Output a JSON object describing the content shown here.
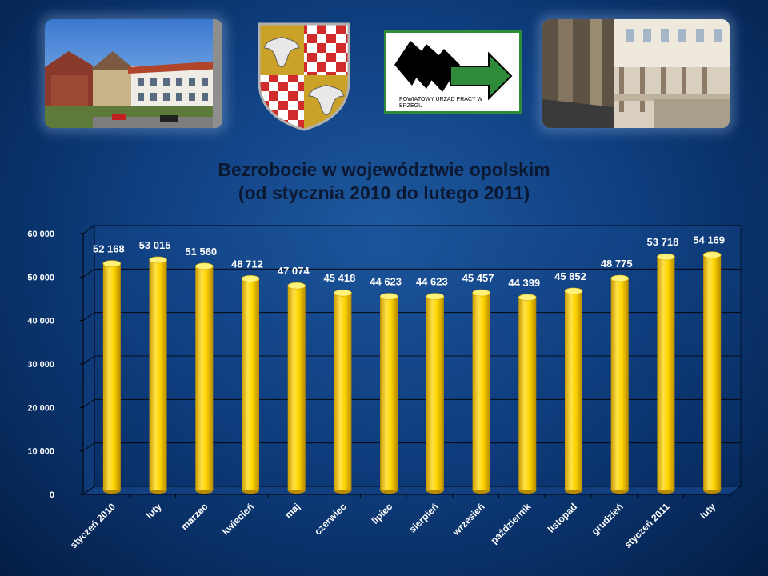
{
  "header": {
    "logo_text": "POWIATOWY URZĄD PRACY W BRZEGU"
  },
  "colors": {
    "bar": "#ffd700",
    "bar_dark": "#c99a00",
    "background": "#0f3f80",
    "logo_green": "#2e8b3a"
  },
  "chart_data": {
    "type": "bar",
    "title": "Bezrobocie w województwie opolskim",
    "subtitle": "(od stycznia 2010 do lutego 2011)",
    "xlabel": "",
    "ylabel": "",
    "ylim": [
      0,
      60000
    ],
    "yticks": [
      0,
      10000,
      20000,
      30000,
      40000,
      50000,
      60000
    ],
    "ytick_labels": [
      "0",
      "10 000",
      "20 000",
      "30 000",
      "40 000",
      "50 000",
      "60 000"
    ],
    "grid": true,
    "legend": "none",
    "categories": [
      "styczeń 2010",
      "luty",
      "marzec",
      "kwiecień",
      "maj",
      "czerwiec",
      "lipiec",
      "sierpień",
      "wrzesień",
      "październik",
      "listopad",
      "grudzień",
      "styczeń 2011",
      "luty"
    ],
    "values": [
      52168,
      53015,
      51560,
      48712,
      47074,
      45418,
      44623,
      44623,
      45457,
      44399,
      45852,
      48775,
      53718,
      54169
    ],
    "value_labels": [
      "52 168",
      "53 015",
      "51 560",
      "48 712",
      "47 074",
      "45 418",
      "44 623",
      "44 623",
      "45 457",
      "44 399",
      "45 852",
      "48 775",
      "53 718",
      "54 169"
    ]
  }
}
